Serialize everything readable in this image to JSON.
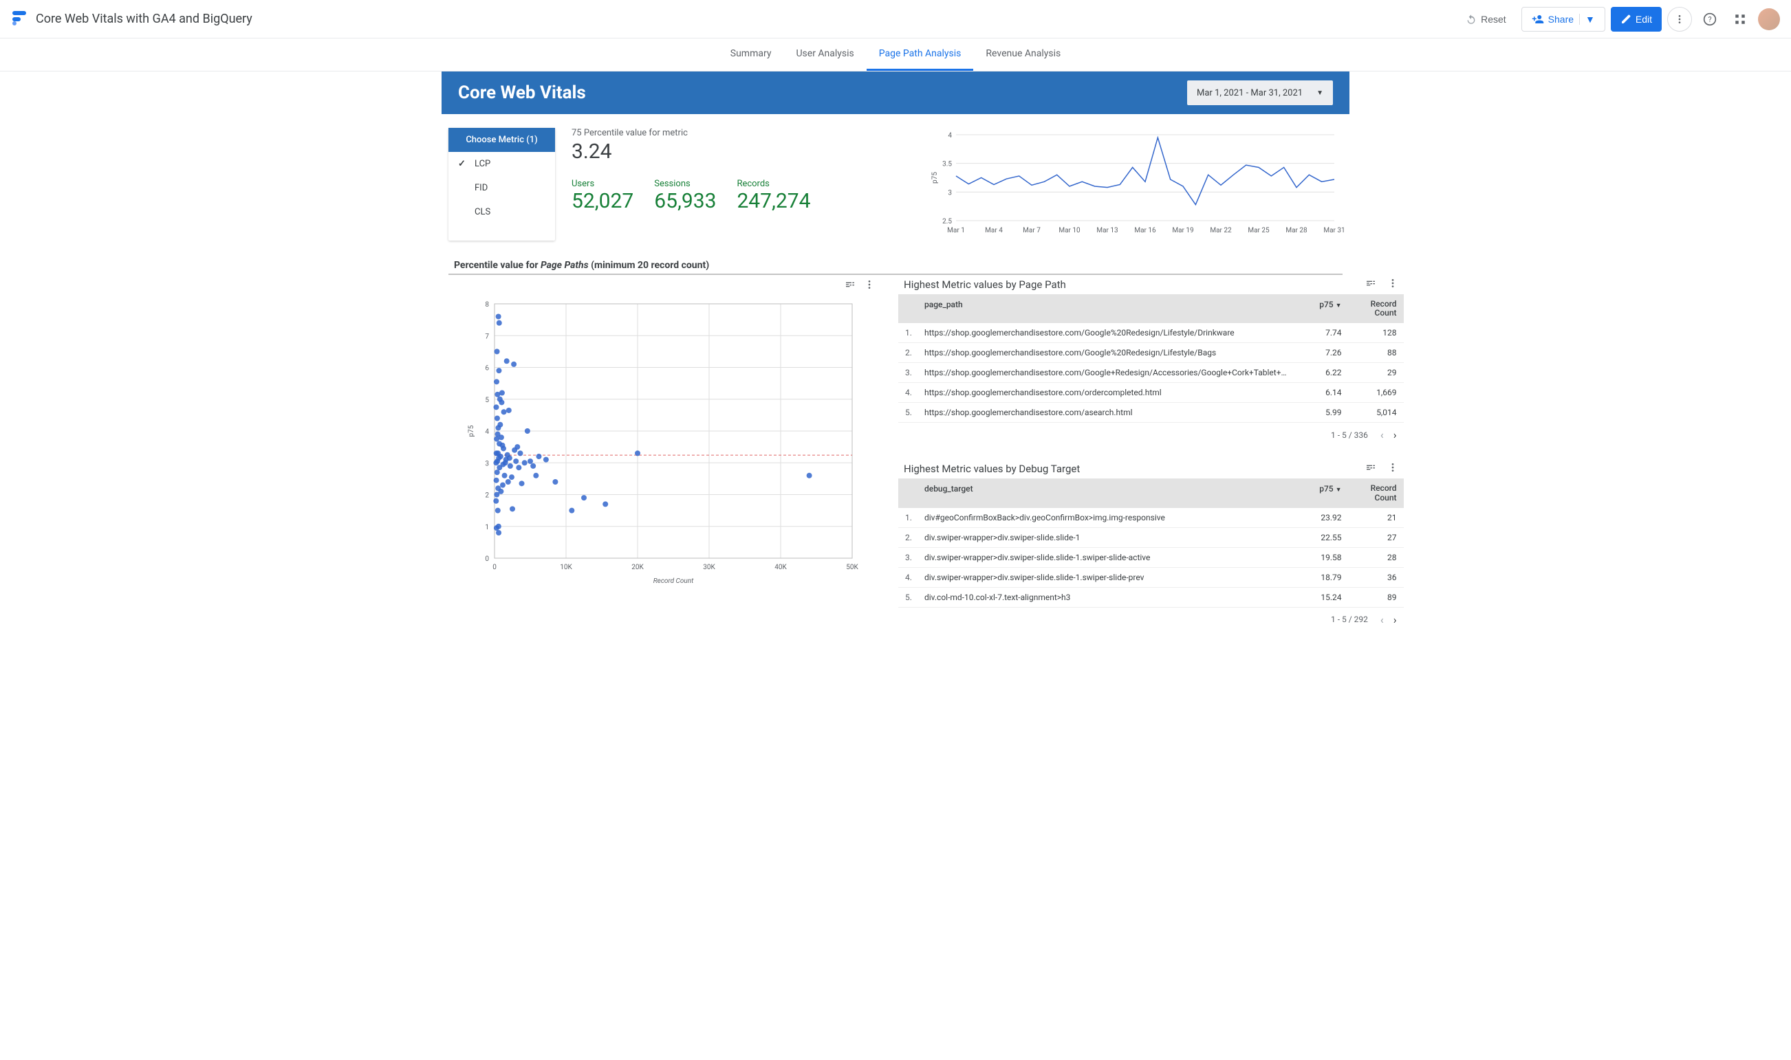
{
  "header": {
    "report_title": "Core Web Vitals with GA4 and BigQuery",
    "reset_label": "Reset",
    "share_label": "Share",
    "edit_label": "Edit"
  },
  "tabs": [
    {
      "label": "Summary",
      "active": false
    },
    {
      "label": "User Analysis",
      "active": false
    },
    {
      "label": "Page Path Analysis",
      "active": true
    },
    {
      "label": "Revenue Analysis",
      "active": false
    }
  ],
  "banner": {
    "title": "Core Web Vitals",
    "date_range": "Mar 1, 2021 - Mar 31, 2021"
  },
  "metric_chooser": {
    "title": "Choose Metric (1)",
    "options": [
      {
        "label": "LCP",
        "selected": true
      },
      {
        "label": "FID",
        "selected": false
      },
      {
        "label": "CLS",
        "selected": false
      }
    ]
  },
  "percentile_stat": {
    "label": "75 Percentile value for metric",
    "value": "3.24"
  },
  "stats": [
    {
      "label": "Users",
      "value": "52,027"
    },
    {
      "label": "Sessions",
      "value": "65,933"
    },
    {
      "label": "Records",
      "value": "247,274"
    }
  ],
  "line_chart": {
    "type": "line",
    "ylabel": "p75",
    "ylim": [
      2.5,
      4.0
    ],
    "yticks": [
      2.5,
      3,
      3.5,
      4
    ],
    "xticks": [
      "Mar 1",
      "Mar 4",
      "Mar 7",
      "Mar 10",
      "Mar 13",
      "Mar 16",
      "Mar 19",
      "Mar 22",
      "Mar 25",
      "Mar 28",
      "Mar 31"
    ],
    "line_color": "#3366cc",
    "grid_color": "#e0e0e0",
    "background_color": "#ffffff",
    "data": [
      3.28,
      3.14,
      3.25,
      3.13,
      3.23,
      3.28,
      3.12,
      3.18,
      3.3,
      3.1,
      3.18,
      3.1,
      3.08,
      3.13,
      3.43,
      3.18,
      3.95,
      3.22,
      3.1,
      2.78,
      3.3,
      3.12,
      3.3,
      3.47,
      3.43,
      3.28,
      3.43,
      3.08,
      3.3,
      3.18,
      3.22
    ]
  },
  "section2_title": {
    "prefix": "Percentile value for ",
    "emph": "Page Paths",
    "suffix": " (minimum 20 record count)"
  },
  "scatter": {
    "type": "scatter",
    "xlabel": "Record Count",
    "ylabel": "p75",
    "point_color": "#3366cc",
    "grid_color": "#dedede",
    "ref_line_color": "#e06666",
    "ref_line_y": 3.24,
    "xlim": [
      0,
      50000
    ],
    "xticks": [
      0,
      10000,
      20000,
      30000,
      40000,
      50000
    ],
    "xtick_labels": [
      "0",
      "10K",
      "20K",
      "30K",
      "40K",
      "50K"
    ],
    "ylim": [
      0,
      8
    ],
    "yticks": [
      0,
      1,
      2,
      3,
      4,
      5,
      6,
      7,
      8
    ],
    "points": [
      [
        44000,
        2.6
      ],
      [
        20000,
        3.3
      ],
      [
        15500,
        1.7
      ],
      [
        12500,
        1.9
      ],
      [
        10800,
        1.5
      ],
      [
        8500,
        2.4
      ],
      [
        7200,
        3.1
      ],
      [
        6200,
        3.2
      ],
      [
        5800,
        2.6
      ],
      [
        5400,
        2.9
      ],
      [
        5000,
        3.05
      ],
      [
        4600,
        4.0
      ],
      [
        4200,
        3.0
      ],
      [
        3800,
        2.35
      ],
      [
        3600,
        3.3
      ],
      [
        3400,
        2.85
      ],
      [
        3200,
        3.5
      ],
      [
        3000,
        3.05
      ],
      [
        2800,
        3.4
      ],
      [
        2700,
        6.1
      ],
      [
        2500,
        1.55
      ],
      [
        2400,
        2.55
      ],
      [
        2200,
        2.9
      ],
      [
        2100,
        3.15
      ],
      [
        2000,
        4.65
      ],
      [
        1900,
        2.4
      ],
      [
        1800,
        3.25
      ],
      [
        1700,
        6.2
      ],
      [
        1600,
        3.1
      ],
      [
        1500,
        3.0
      ],
      [
        1400,
        2.6
      ],
      [
        1300,
        4.6
      ],
      [
        1250,
        3.45
      ],
      [
        1200,
        2.95
      ],
      [
        1150,
        2.3
      ],
      [
        1100,
        3.55
      ],
      [
        1050,
        5.2
      ],
      [
        1000,
        4.9
      ],
      [
        950,
        3.8
      ],
      [
        900,
        2.1
      ],
      [
        850,
        3.2
      ],
      [
        800,
        4.2
      ],
      [
        750,
        5.0
      ],
      [
        700,
        2.85
      ],
      [
        680,
        3.6
      ],
      [
        650,
        7.4
      ],
      [
        620,
        5.9
      ],
      [
        600,
        3.15
      ],
      [
        580,
        0.8
      ],
      [
        560,
        1.0
      ],
      [
        540,
        7.6
      ],
      [
        520,
        4.1
      ],
      [
        500,
        2.2
      ],
      [
        480,
        3.3
      ],
      [
        460,
        1.5
      ],
      [
        440,
        3.9
      ],
      [
        420,
        5.15
      ],
      [
        400,
        3.05
      ],
      [
        380,
        4.4
      ],
      [
        360,
        2.7
      ],
      [
        340,
        6.5
      ],
      [
        320,
        2.0
      ],
      [
        300,
        3.75
      ],
      [
        290,
        5.55
      ],
      [
        280,
        0.95
      ],
      [
        260,
        3.3
      ],
      [
        250,
        2.45
      ],
      [
        240,
        4.75
      ],
      [
        230,
        3.0
      ],
      [
        220,
        1.8
      ]
    ]
  },
  "table_page_path": {
    "title": "Highest Metric values by Page Path",
    "columns": {
      "path": "page_path",
      "p75": "p75",
      "count_l1": "Record",
      "count_l2": "Count"
    },
    "rows": [
      {
        "idx": "1.",
        "path": "https://shop.googlemerchandisestore.com/Google%20Redesign/Lifestyle/Drinkware",
        "p75": "7.74",
        "count": "128"
      },
      {
        "idx": "2.",
        "path": "https://shop.googlemerchandisestore.com/Google%20Redesign/Lifestyle/Bags",
        "p75": "7.26",
        "count": "88"
      },
      {
        "idx": "3.",
        "path": "https://shop.googlemerchandisestore.com/Google+Redesign/Accessories/Google+Cork+Tablet+…",
        "p75": "6.22",
        "count": "29"
      },
      {
        "idx": "4.",
        "path": "https://shop.googlemerchandisestore.com/ordercompleted.html",
        "p75": "6.14",
        "count": "1,669"
      },
      {
        "idx": "5.",
        "path": "https://shop.googlemerchandisestore.com/asearch.html",
        "p75": "5.99",
        "count": "5,014"
      }
    ],
    "pager": "1 - 5 / 336"
  },
  "table_debug_target": {
    "title": "Highest Metric values by Debug Target",
    "columns": {
      "path": "debug_target",
      "p75": "p75",
      "count_l1": "Record",
      "count_l2": "Count"
    },
    "rows": [
      {
        "idx": "1.",
        "path": "div#geoConfirmBoxBack>div.geoConfirmBox>img.img-responsive",
        "p75": "23.92",
        "count": "21"
      },
      {
        "idx": "2.",
        "path": "div.swiper-wrapper>div.swiper-slide.slide-1",
        "p75": "22.55",
        "count": "27"
      },
      {
        "idx": "3.",
        "path": "div.swiper-wrapper>div.swiper-slide.slide-1.swiper-slide-active",
        "p75": "19.58",
        "count": "28"
      },
      {
        "idx": "4.",
        "path": "div.swiper-wrapper>div.swiper-slide.slide-1.swiper-slide-prev",
        "p75": "18.79",
        "count": "36"
      },
      {
        "idx": "5.",
        "path": "div.col-md-10.col-xl-7.text-alignment>h3",
        "p75": "15.24",
        "count": "89"
      }
    ],
    "pager": "1 - 5 / 292"
  },
  "colors": {
    "brand_blue": "#2b70b8",
    "link_blue": "#1a73e8",
    "green": "#188038"
  }
}
